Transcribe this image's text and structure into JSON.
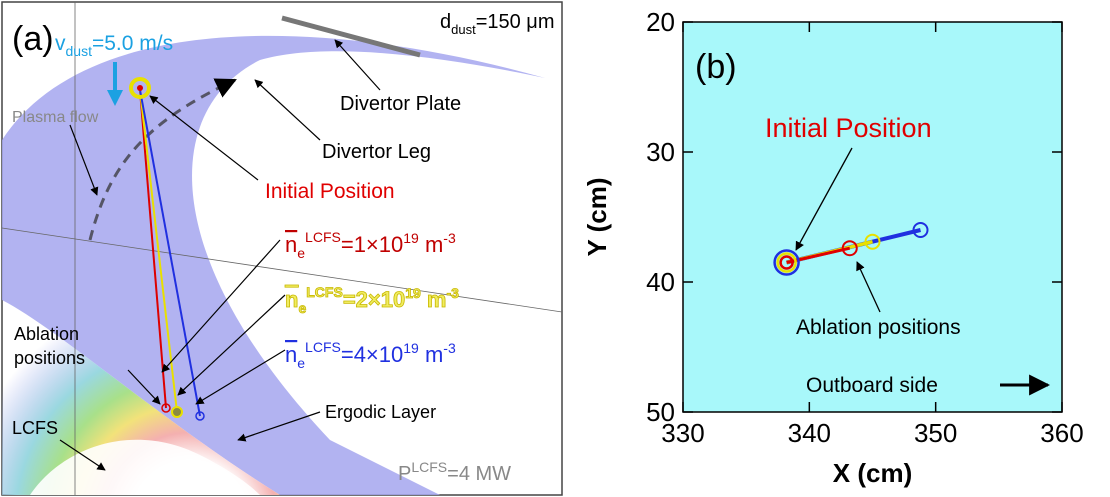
{
  "panel_a": {
    "label": "(a)",
    "velocity": {
      "base": "v",
      "sub": "dust",
      "rest": "=5.0 m/s"
    },
    "diameter": {
      "base": "d",
      "sub": "dust",
      "rest": "=150 μm"
    },
    "plasma_flow": "Plasma flow",
    "divertor_plate": "Divertor Plate",
    "divertor_leg": "Divertor Leg",
    "initial_position": "Initial Position",
    "density_labels": [
      {
        "base": "n",
        "sub": "e",
        "sup": "LCFS",
        "eq": "=1×10",
        "exp": "19",
        "unit": " m",
        "unit_exp": "-3"
      },
      {
        "base": "n",
        "sub": "e",
        "sup": "LCFS",
        "eq": "=2×10",
        "exp": "19",
        "unit": " m",
        "unit_exp": "-3"
      },
      {
        "base": "n",
        "sub": "e",
        "sup": "LCFS",
        "eq": "=4×10",
        "exp": "19",
        "unit": " m",
        "unit_exp": "-3"
      }
    ],
    "ablation_positions": [
      "Ablation",
      "positions"
    ],
    "ergodic_layer": "Ergodic Layer",
    "lcfs": "LCFS",
    "power": {
      "base": "P",
      "sup": "LCFS",
      "rest": "=4 MW"
    }
  },
  "chart_data": {
    "type": "line",
    "label": "(b)",
    "x_label": "X (cm)",
    "y_label": "Y (cm)",
    "xlim": [
      330,
      360
    ],
    "xticks": [
      330,
      340,
      350,
      360
    ],
    "ylim": [
      20,
      50
    ],
    "yticks": [
      20,
      30,
      40,
      50
    ],
    "y_inverted": true,
    "background": "#a8f8fa",
    "series": [
      {
        "color": "#2030e0",
        "x": [
          338.2,
          348.8
        ],
        "values": [
          38.5,
          36.0
        ]
      },
      {
        "color": "#e8e000",
        "x": [
          338.2,
          345.0
        ],
        "values": [
          38.5,
          36.9
        ]
      },
      {
        "color": "#e00000",
        "x": [
          338.2,
          343.2
        ],
        "values": [
          38.5,
          37.4
        ]
      }
    ],
    "annotations": [
      "Initial Position",
      "Ablation positions",
      "Outboard side"
    ]
  }
}
